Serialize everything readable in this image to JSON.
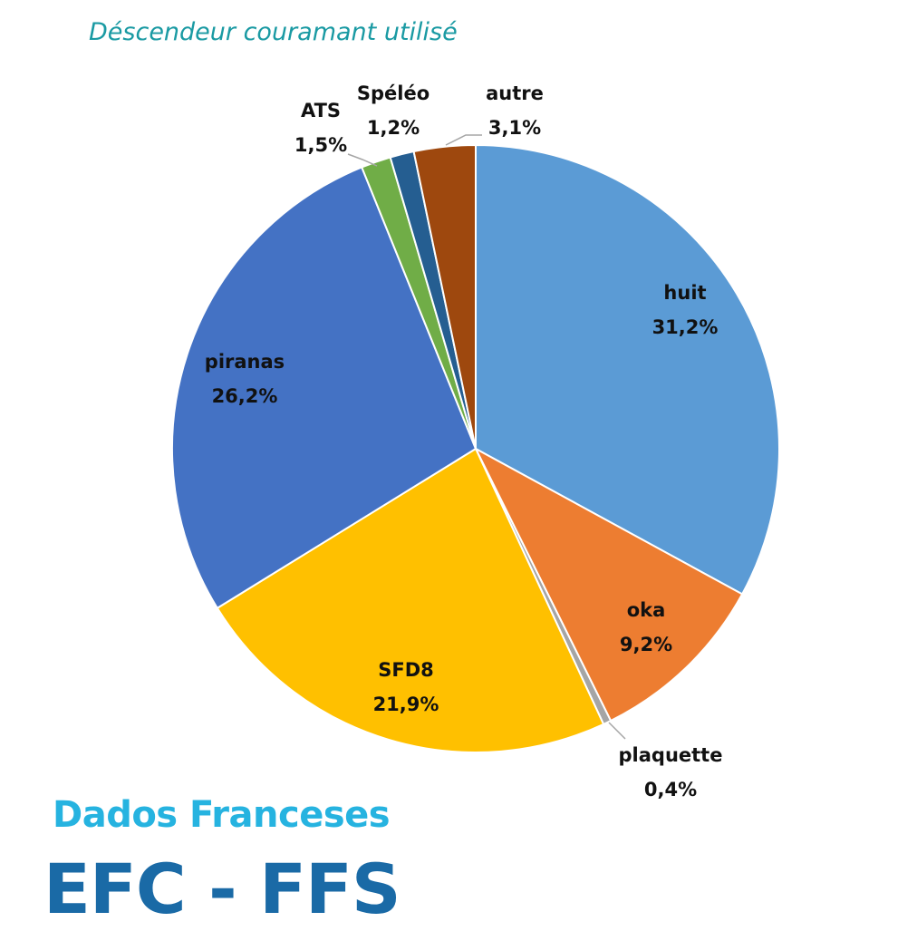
{
  "header": {
    "title": "Déscendeur couramant utilisé"
  },
  "footer": {
    "subtitle": "Dados Franceses",
    "title": "EFC - FFS"
  },
  "chart_data": {
    "type": "pie",
    "title": "Déscendeur couramant utilisé",
    "start_angle_deg": 0,
    "direction": "clockwise",
    "slices": [
      {
        "label": "huit",
        "value": 31.2,
        "display": "31,2%",
        "color": "#5b9bd5"
      },
      {
        "label": "oka",
        "value": 9.2,
        "display": "9,2%",
        "color": "#ed7d31"
      },
      {
        "label": "plaquette",
        "value": 0.4,
        "display": "0,4%",
        "color": "#a5a5a5"
      },
      {
        "label": "SFD8",
        "value": 21.9,
        "display": "21,9%",
        "color": "#ffc000"
      },
      {
        "label": "piranas",
        "value": 26.2,
        "display": "26,2%",
        "color": "#4472c4"
      },
      {
        "label": "ATS",
        "value": 1.5,
        "display": "1,5%",
        "color": "#70ad47"
      },
      {
        "label": "Spéléo",
        "value": 1.2,
        "display": "1,2%",
        "color": "#255e91"
      },
      {
        "label": "autre",
        "value": 3.1,
        "display": "3,1%",
        "color": "#9e480e"
      }
    ]
  }
}
